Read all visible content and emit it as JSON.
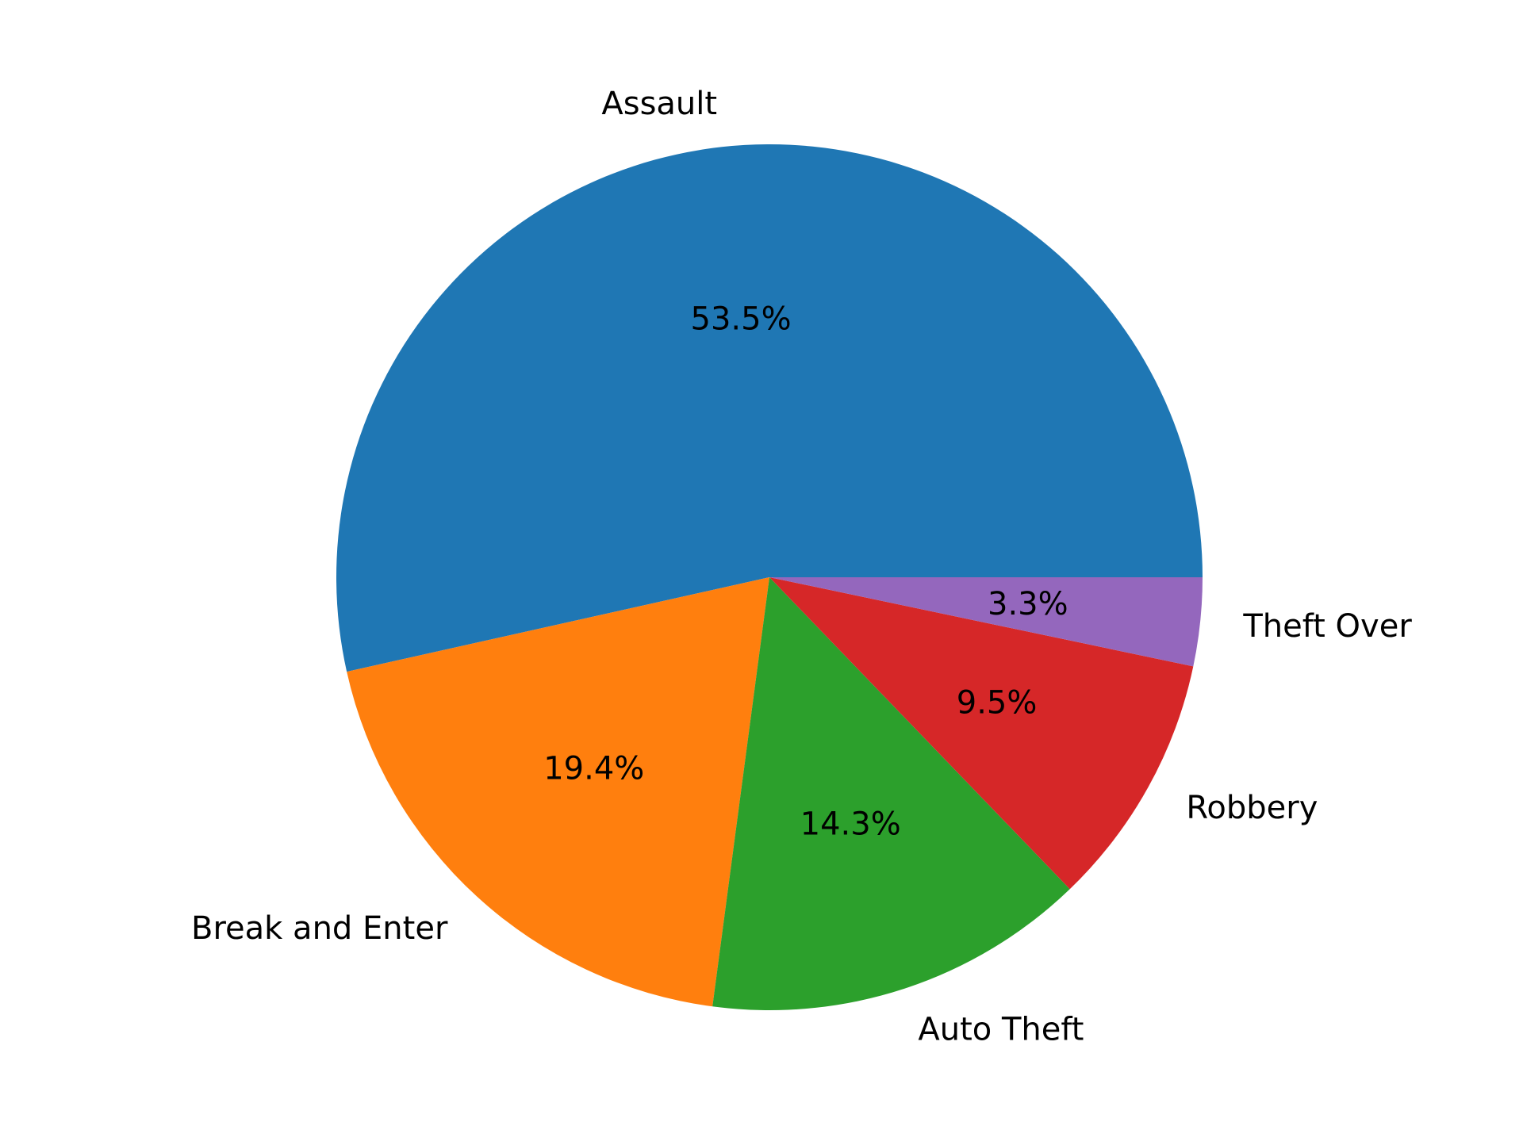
{
  "chart_data": {
    "type": "pie",
    "title": "",
    "labels": [
      "Assault",
      "Break and Enter",
      "Auto Theft",
      "Robbery",
      "Theft Over"
    ],
    "values": [
      53.5,
      19.4,
      14.3,
      9.5,
      3.3
    ],
    "value_labels": [
      "53.5%",
      "19.4%",
      "14.3%",
      "9.5%",
      "3.3%"
    ],
    "colors": [
      "#1f77b4",
      "#ff7f0e",
      "#2ca02c",
      "#d62728",
      "#9467bd"
    ],
    "start_angle_deg": 0,
    "direction": "counterclockwise",
    "legend": "none"
  }
}
